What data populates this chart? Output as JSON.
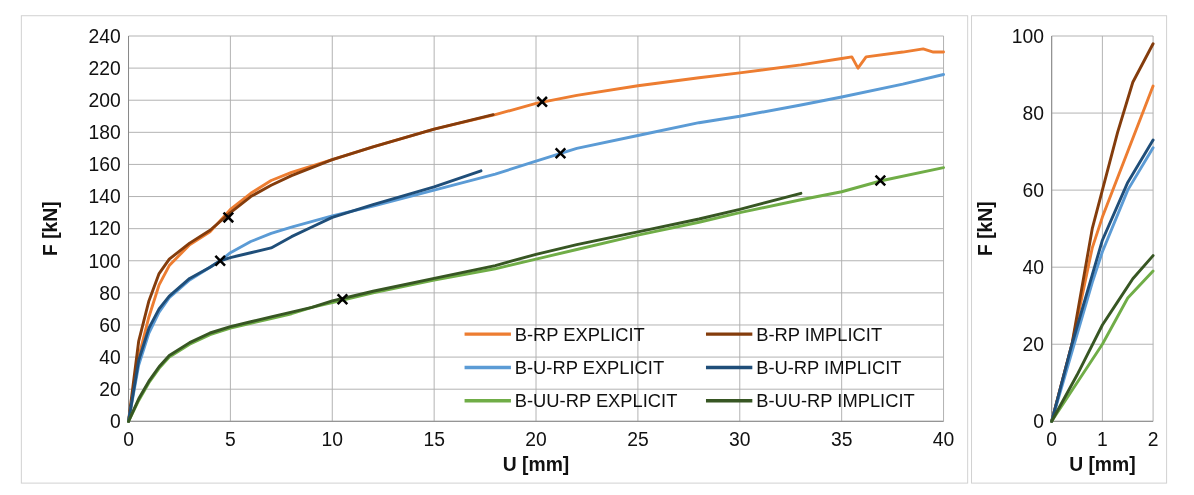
{
  "chart_data": [
    {
      "type": "line",
      "xlabel": "U [mm]",
      "ylabel": "F [kN]",
      "xlim": [
        0,
        40
      ],
      "ylim": [
        0,
        240
      ],
      "xticks": [
        0,
        5,
        10,
        15,
        20,
        25,
        30,
        35,
        40
      ],
      "yticks": [
        0,
        20,
        40,
        60,
        80,
        100,
        120,
        140,
        160,
        180,
        200,
        220,
        240
      ],
      "grid": true,
      "legend": "bottom right",
      "line_style": "solid",
      "marker": "none",
      "series": [
        {
          "name": "B-RP EXPLICIT",
          "color": "#ed7d31",
          "x": [
            0,
            0.5,
            1,
            1.5,
            2,
            3,
            4,
            5,
            6,
            7,
            8,
            10,
            12,
            15,
            18,
            20,
            22,
            25,
            28,
            30,
            33,
            35,
            35.5,
            35.8,
            36.2,
            38,
            39,
            39.5,
            40
          ],
          "values": [
            0,
            40,
            65,
            85,
            97,
            110,
            118,
            132,
            142,
            150,
            155,
            163,
            171,
            182,
            191,
            198,
            203,
            209,
            214,
            217,
            222,
            226,
            227,
            220,
            227,
            230,
            232,
            230,
            230
          ]
        },
        {
          "name": "B-RP IMPLICIT",
          "color": "#843c0c",
          "x": [
            0,
            0.5,
            1,
            1.5,
            2,
            3,
            4,
            5,
            6,
            7,
            8,
            10,
            12,
            15,
            17.9
          ],
          "values": [
            0,
            50,
            75,
            92,
            101,
            111,
            119,
            130,
            140,
            147,
            153,
            163,
            171,
            182,
            191
          ]
        },
        {
          "name": "B-U-RP EXPLICIT",
          "color": "#5b9bd5",
          "x": [
            0,
            0.5,
            1,
            1.5,
            2,
            3,
            4,
            4.5,
            5,
            6,
            7,
            8,
            10,
            12,
            15,
            18,
            20,
            22,
            25,
            28,
            30,
            33,
            35,
            38,
            40
          ],
          "values": [
            0,
            35,
            55,
            68,
            77,
            88,
            96,
            100,
            105,
            112,
            117,
            121,
            128,
            134,
            144,
            154,
            162,
            170,
            178,
            186,
            190,
            197,
            202,
            210,
            216
          ]
        },
        {
          "name": "B-U-RP IMPLICIT",
          "color": "#1f4e79",
          "x": [
            0,
            0.5,
            1,
            1.5,
            2,
            3,
            4,
            4.5,
            5,
            6,
            7,
            8,
            9,
            10,
            12,
            15,
            17.3
          ],
          "values": [
            0,
            38,
            58,
            70,
            78,
            89,
            96,
            100,
            102,
            105,
            108,
            115,
            121,
            127,
            135,
            146,
            156
          ]
        },
        {
          "name": "B-UU-RP EXPLICIT",
          "color": "#70ad47",
          "x": [
            0,
            0.5,
            1,
            1.5,
            2,
            3,
            4,
            5,
            6,
            7,
            8,
            9,
            10,
            12,
            15,
            18,
            20,
            22,
            25,
            28,
            30,
            33,
            35,
            37,
            40
          ],
          "values": [
            0,
            13,
            24,
            33,
            40,
            48,
            54,
            58,
            61,
            64,
            67,
            71,
            74,
            80,
            88,
            95,
            101,
            107,
            116,
            124,
            130,
            138,
            143,
            150,
            158
          ]
        },
        {
          "name": "B-UU-RP IMPLICIT",
          "color": "#375623",
          "x": [
            0,
            0.5,
            1,
            1.5,
            2,
            3,
            4,
            5,
            6,
            7,
            8,
            9,
            10,
            12,
            15,
            18,
            20,
            22,
            25,
            28,
            30,
            33
          ],
          "values": [
            0,
            14,
            25,
            34,
            41,
            49,
            55,
            59,
            62,
            65,
            68,
            71,
            75,
            81,
            89,
            97,
            104,
            110,
            118,
            126,
            132,
            142
          ]
        },
        {
          "type": "scatter",
          "marker": "cross",
          "color": "#000000",
          "x": [
            4.9,
            20.3,
            4.5,
            21.2,
            10.5,
            36.9
          ],
          "values": [
            127,
            199,
            100,
            167,
            76,
            150
          ]
        }
      ]
    },
    {
      "type": "line",
      "xlabel": "U [mm]",
      "ylabel": "F [kN]",
      "xlim": [
        0,
        2
      ],
      "ylim": [
        0,
        100
      ],
      "xticks": [
        0,
        1,
        2
      ],
      "yticks": [
        0,
        20,
        40,
        60,
        80,
        100
      ],
      "grid": true,
      "line_style": "solid",
      "marker": "none",
      "series": [
        {
          "color": "#ed7d31",
          "x": [
            0,
            0.4,
            0.8,
            1,
            1.5,
            2
          ],
          "values": [
            0,
            20,
            45,
            53,
            70,
            87
          ]
        },
        {
          "color": "#843c0c",
          "x": [
            0,
            0.4,
            0.8,
            1,
            1.3,
            1.6,
            2
          ],
          "values": [
            0,
            20,
            50,
            60,
            75,
            88,
            98
          ]
        },
        {
          "color": "#5b9bd5",
          "x": [
            0,
            0.4,
            0.8,
            1,
            1.5,
            2
          ],
          "values": [
            0,
            18,
            36,
            44,
            60,
            71
          ]
        },
        {
          "color": "#1f4e79",
          "x": [
            0,
            0.4,
            0.8,
            1,
            1.5,
            2
          ],
          "values": [
            0,
            20,
            38,
            47,
            62,
            73
          ]
        },
        {
          "color": "#70ad47",
          "x": [
            0,
            0.5,
            1,
            1.5,
            2
          ],
          "values": [
            0,
            10,
            20,
            32,
            39
          ]
        },
        {
          "color": "#375623",
          "x": [
            0,
            0.5,
            1,
            1.3,
            1.6,
            2
          ],
          "values": [
            0,
            12,
            25,
            31,
            37,
            43
          ]
        }
      ]
    }
  ]
}
